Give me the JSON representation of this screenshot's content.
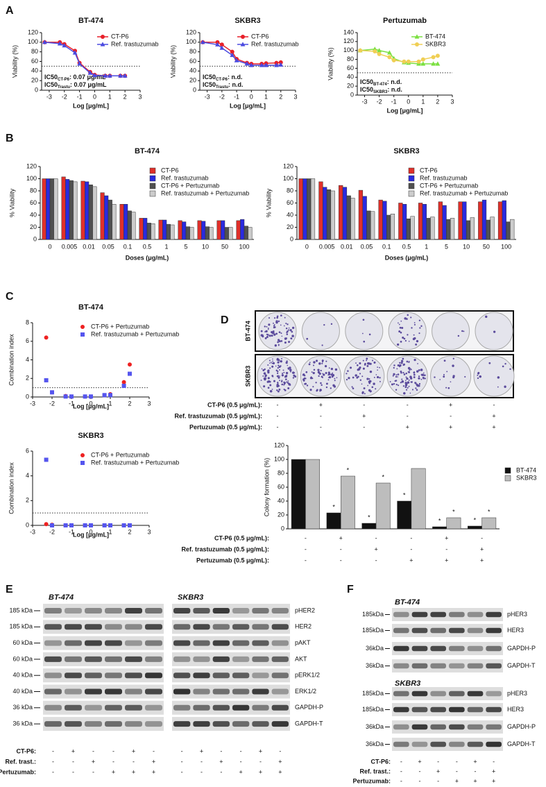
{
  "panel_labels": [
    "A",
    "B",
    "C",
    "D",
    "E",
    "F"
  ],
  "chart_data": [
    {
      "type": "line",
      "title": "BT-474",
      "xlabel": "Log [μg/mL]",
      "ylabel": "Viability (%)",
      "x": [
        -3.3,
        -2.3,
        -2,
        -1.3,
        -1,
        -0.3,
        0,
        0.7,
        1,
        1.7,
        2
      ],
      "xlim": [
        -3.5,
        3
      ],
      "xticks": [
        -3,
        -2,
        -1,
        0,
        1,
        2,
        3
      ],
      "ylim": [
        0,
        120
      ],
      "yticks": [
        0,
        20,
        40,
        60,
        80,
        100,
        120
      ],
      "reference_line": 50,
      "legend": "upper right",
      "series": [
        {
          "name": "CT-P6",
          "color": "#e8202a",
          "marker": "circle",
          "values": [
            100,
            100,
            96,
            82,
            57,
            38,
            32,
            30,
            30,
            30,
            30
          ]
        },
        {
          "name": "Ref. trastuzumab",
          "color": "#4a4ae0",
          "marker": "triangle",
          "values": [
            100,
            97,
            93,
            78,
            55,
            36,
            31,
            30,
            30,
            30,
            30
          ]
        }
      ],
      "annotations": [
        {
          "text": "IC50",
          "sub": "CT-P6",
          "rest": ": 0.07 μg/mL"
        },
        {
          "text": "IC50",
          "sub": "Trastu",
          "rest": ": 0.07 μg/mL"
        }
      ]
    },
    {
      "type": "line",
      "title": "SKBR3",
      "xlabel": "Log [μg/mL]",
      "ylabel": "Viability (%)",
      "x": [
        -3.3,
        -2.3,
        -2,
        -1.3,
        -1,
        -0.3,
        0,
        0.7,
        1,
        1.7,
        2
      ],
      "xlim": [
        -3.5,
        3
      ],
      "xticks": [
        -3,
        -2,
        -1,
        0,
        1,
        2,
        3
      ],
      "ylim": [
        0,
        120
      ],
      "yticks": [
        0,
        20,
        40,
        60,
        80,
        100,
        120
      ],
      "reference_line": 50,
      "legend": "upper right",
      "series": [
        {
          "name": "CT-P6",
          "color": "#e8202a",
          "marker": "circle",
          "values": [
            100,
            100,
            95,
            80,
            65,
            57,
            55,
            55,
            56,
            57,
            58
          ]
        },
        {
          "name": "Ref. trastuzumab",
          "color": "#4a4ae0",
          "marker": "triangle",
          "values": [
            100,
            95,
            88,
            73,
            62,
            55,
            52,
            52,
            52,
            52,
            53
          ]
        }
      ],
      "annotations": [
        {
          "text": "IC50",
          "sub": "CT-P6",
          "rest": ": n.d."
        },
        {
          "text": "IC50",
          "sub": "Trastu",
          "rest": ": n.d."
        }
      ]
    },
    {
      "type": "line",
      "title": "Pertuzumab",
      "xlabel": "Log [μg/mL]",
      "ylabel": "Viability (%)",
      "x": [
        -3.3,
        -2.3,
        -2,
        -1.3,
        -1,
        -0.3,
        0,
        0.7,
        1,
        1.7,
        2
      ],
      "xlim": [
        -3.5,
        3
      ],
      "xticks": [
        -3,
        -2,
        -1,
        0,
        1,
        2,
        3
      ],
      "ylim": [
        0,
        140
      ],
      "yticks": [
        0,
        20,
        40,
        60,
        80,
        100,
        120,
        140
      ],
      "reference_line": 50,
      "legend": "upper right",
      "series": [
        {
          "name": "BT-474",
          "color": "#7be040",
          "marker": "triangle",
          "values": [
            100,
            103,
            100,
            95,
            82,
            73,
            72,
            70,
            70,
            70,
            70
          ]
        },
        {
          "name": "SKBR3",
          "color": "#f0cf55",
          "marker": "circle",
          "values": [
            100,
            98,
            92,
            85,
            78,
            75,
            75,
            75,
            80,
            85,
            88
          ]
        }
      ],
      "annotations": [
        {
          "text": "IC50",
          "sub": "BT-474",
          "rest": ": n.d."
        },
        {
          "text": "IC50",
          "sub": "SKBR3",
          "rest": ": n.d."
        }
      ]
    },
    {
      "type": "bar",
      "title": "BT-474",
      "xlabel": "Doses (μg/mL)",
      "ylabel": "% Viability",
      "categories": [
        "0",
        "0.005",
        "0.01",
        "0.05",
        "0.1",
        "0.5",
        "1",
        "5",
        "10",
        "50",
        "100"
      ],
      "ylim": [
        0,
        120
      ],
      "yticks": [
        0,
        20,
        40,
        60,
        80,
        100,
        120
      ],
      "legend": "upper right",
      "series": [
        {
          "name": "CT-P6",
          "color": "#e0302a",
          "values": [
            100,
            103,
            96,
            77,
            58,
            35,
            32,
            31,
            31,
            31,
            31
          ]
        },
        {
          "name": "Ref. trastuzumab",
          "color": "#2a2ae0",
          "values": [
            100,
            99,
            95,
            72,
            58,
            35,
            32,
            29,
            30,
            31,
            33
          ]
        },
        {
          "name": "CT-P6 + Pertuzumab",
          "color": "#505050",
          "values": [
            100,
            97,
            90,
            65,
            47,
            27,
            25,
            21,
            21,
            20,
            22
          ]
        },
        {
          "name": "Ref. trastuzumab + Pertuzumab",
          "color": "#cccccc",
          "values": [
            100,
            95,
            87,
            58,
            45,
            26,
            24,
            20,
            20,
            20,
            20
          ]
        }
      ]
    },
    {
      "type": "bar",
      "title": "SKBR3",
      "xlabel": "Doses (μg/mL)",
      "ylabel": "% Viability",
      "categories": [
        "0",
        "0.005",
        "0.01",
        "0.05",
        "0.1",
        "0.5",
        "1",
        "5",
        "10",
        "50",
        "100"
      ],
      "ylim": [
        0,
        120
      ],
      "yticks": [
        0,
        20,
        40,
        60,
        80,
        100,
        120
      ],
      "legend": "upper right",
      "series": [
        {
          "name": "CT-P6",
          "color": "#e0302a",
          "values": [
            100,
            95,
            89,
            81,
            65,
            60,
            60,
            62,
            62,
            62,
            62
          ]
        },
        {
          "name": "Ref. trastuzumab",
          "color": "#2a2ae0",
          "values": [
            100,
            86,
            86,
            71,
            63,
            58,
            58,
            56,
            62,
            65,
            64
          ]
        },
        {
          "name": "CT-P6 + Pertuzumab",
          "color": "#505050",
          "values": [
            100,
            82,
            72,
            47,
            40,
            34,
            35,
            33,
            31,
            32,
            29
          ]
        },
        {
          "name": "Ref. trastuzumab + Pertuzumab",
          "color": "#cccccc",
          "values": [
            100,
            80,
            68,
            46,
            42,
            38,
            37,
            35,
            36,
            37,
            33
          ]
        }
      ]
    },
    {
      "type": "scatter",
      "title": "BT-474",
      "xlabel": "Log [μg/mL]",
      "ylabel": "Combination index",
      "x": [
        -2.3,
        -2,
        -1.3,
        -1,
        -0.3,
        0,
        0.7,
        1,
        1.7,
        2
      ],
      "xlim": [
        -3,
        3
      ],
      "xticks": [
        -3,
        -2,
        -1,
        0,
        1,
        2,
        3
      ],
      "ylim": [
        0,
        8
      ],
      "yticks": [
        0,
        2,
        4,
        6,
        8
      ],
      "reference_line": 1,
      "legend": "upper right",
      "series": [
        {
          "name": "CT-P6 + Pertuzumab",
          "color": "#ee2222",
          "marker": "circle",
          "values": [
            6.4,
            0.5,
            0.1,
            0.05,
            0.05,
            0.05,
            0.2,
            0.3,
            1.6,
            3.5
          ]
        },
        {
          "name": "Ref. trastuzumab + Pertuzumab",
          "color": "#5555ee",
          "marker": "square",
          "values": [
            1.8,
            0.5,
            0.05,
            0.05,
            0.05,
            0.05,
            0.2,
            0.2,
            1.2,
            2.5
          ]
        }
      ]
    },
    {
      "type": "scatter",
      "title": "SKBR3",
      "xlabel": "Log [μg/mL]",
      "ylabel": "Combination index",
      "x": [
        -2.3,
        -2,
        -1.3,
        -1,
        -0.3,
        0,
        0.7,
        1,
        1.7,
        2
      ],
      "xlim": [
        -3,
        3
      ],
      "xticks": [
        -3,
        -2,
        -1,
        0,
        1,
        2,
        3
      ],
      "ylim": [
        0,
        6
      ],
      "yticks": [
        0,
        2,
        4,
        6
      ],
      "reference_line": 1,
      "legend": "upper right",
      "series": [
        {
          "name": "CT-P6 + Pertuzumab",
          "color": "#ee2222",
          "marker": "circle",
          "values": [
            0.1,
            0.05,
            0,
            0,
            0,
            0,
            0,
            0,
            0,
            0
          ]
        },
        {
          "name": "Ref. trastuzumab + Pertuzumab",
          "color": "#5555ee",
          "marker": "square",
          "values": [
            5.3,
            0,
            0,
            0,
            0,
            0,
            0,
            0,
            0,
            0
          ]
        }
      ]
    },
    {
      "type": "bar",
      "ylabel": "Colony formation (%)",
      "categories": [
        null,
        null,
        null,
        null,
        null,
        null
      ],
      "ylim": [
        0,
        120
      ],
      "yticks": [
        0,
        20,
        40,
        60,
        80,
        100,
        120
      ],
      "legend": "right",
      "series": [
        {
          "name": "BT-474",
          "color": "#111111",
          "values": [
            100,
            23,
            8,
            40,
            3,
            4
          ],
          "markers": [
            null,
            "*",
            "*",
            "*",
            "*",
            "*"
          ]
        },
        {
          "name": "SKBR3",
          "color": "#bdbdbd",
          "values": [
            100,
            76,
            66,
            87,
            16,
            16
          ],
          "markers": [
            null,
            "*",
            "*",
            null,
            "*",
            "*"
          ]
        }
      ]
    }
  ],
  "plates": {
    "rows": [
      "BT-474",
      "SKBR3"
    ]
  },
  "treatments": {
    "rows": [
      {
        "label": "CT-P6 (0.5 μg/mL):",
        "signs": [
          "-",
          "+",
          "-",
          "-",
          "+",
          "-"
        ]
      },
      {
        "label": "Ref. trastuzumab (0.5 μg/mL):",
        "signs": [
          "-",
          "-",
          "+",
          "-",
          "-",
          "+"
        ]
      },
      {
        "label": "Pertuzumab (0.5 μg/mL):",
        "signs": [
          "-",
          "-",
          "-",
          "+",
          "+",
          "+"
        ]
      }
    ]
  },
  "blots": {
    "E": {
      "cells": [
        "BT-474",
        "SKBR3"
      ],
      "markers": [
        "185 kDa",
        "185 kDa",
        "60 kDa",
        "60 kDa",
        "40 kDa",
        "40 kDa",
        "36 kDa",
        "36 kDa"
      ],
      "proteins": [
        "pHER2",
        "HER2",
        "pAKT",
        "AKT",
        "pERK1/2",
        "ERK1/2",
        "GAPDH-P",
        "GAPDH-T"
      ],
      "conditions": [
        {
          "label": "CT-P6:",
          "signs": [
            "-",
            "+",
            "-",
            "-",
            "+",
            "-",
            "-",
            "+",
            "-",
            "-",
            "+",
            "-"
          ]
        },
        {
          "label": "Ref. trast.:",
          "signs": [
            "-",
            "-",
            "+",
            "-",
            "-",
            "+",
            "-",
            "-",
            "+",
            "-",
            "-",
            "+"
          ]
        },
        {
          "label": "Pertuzumab:",
          "signs": [
            "-",
            "-",
            "-",
            "+",
            "+",
            "+",
            "-",
            "-",
            "-",
            "+",
            "+",
            "+"
          ]
        }
      ]
    },
    "F": {
      "groups": [
        {
          "cell": "BT-474",
          "markers": [
            "185kDa",
            "185kDa",
            "36kDa",
            "36kDa"
          ],
          "proteins": [
            "pHER3",
            "HER3",
            "GAPDH-P",
            "GAPDH-T"
          ]
        },
        {
          "cell": "SKBR3",
          "markers": [
            "185kDa",
            "185kDa",
            "36kDa",
            "36kDa"
          ],
          "proteins": [
            "pHER3",
            "HER3",
            "GAPDH-P",
            "GAPDH-T"
          ]
        }
      ],
      "conditions": [
        {
          "label": "CT-P6:",
          "signs": [
            "-",
            "+",
            "-",
            "-",
            "+",
            "-"
          ]
        },
        {
          "label": "Ref. trast.:",
          "signs": [
            "-",
            "-",
            "+",
            "-",
            "-",
            "+"
          ]
        },
        {
          "label": "Pertuzumab:",
          "signs": [
            "-",
            "-",
            "-",
            "+",
            "+",
            "+"
          ]
        }
      ]
    }
  }
}
